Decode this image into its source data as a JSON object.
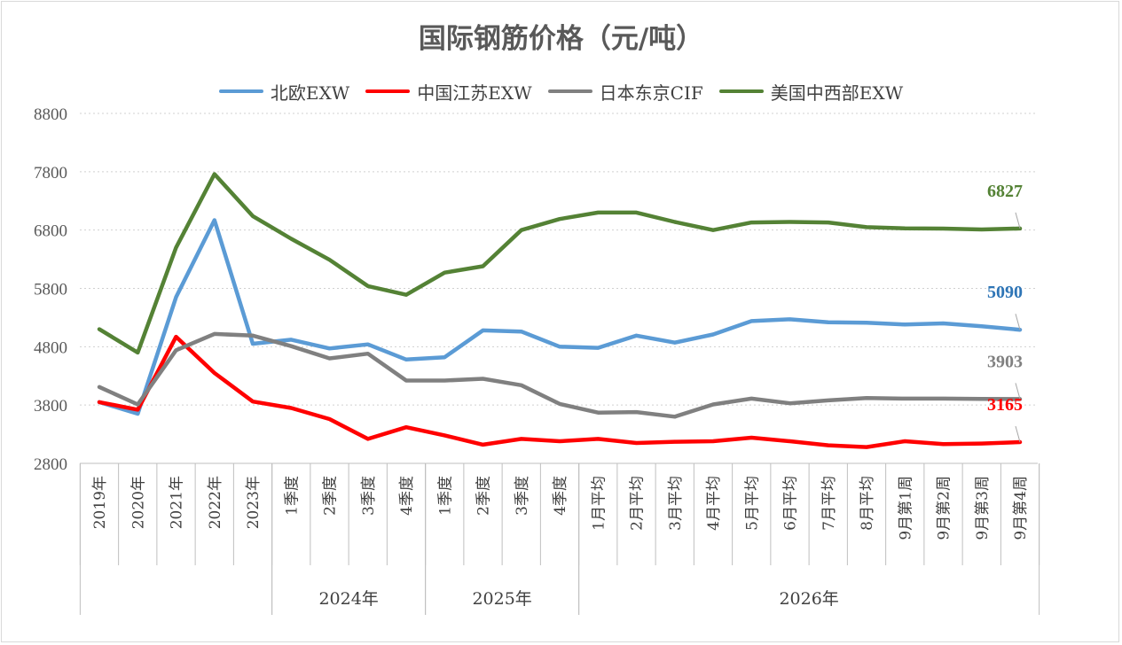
{
  "chart_data": {
    "type": "line",
    "title": "国际钢筋价格（元/吨）",
    "ylim": [
      2800,
      8800
    ],
    "yticks": [
      2800,
      3800,
      4800,
      5800,
      6800,
      7800,
      8800
    ],
    "grid": "horizontal-dotted",
    "legend_position": "top",
    "categories": [
      "2019年",
      "2020年",
      "2021年",
      "2022年",
      "2023年",
      "1季度",
      "2季度",
      "3季度",
      "4季度",
      "1季度",
      "2季度",
      "3季度",
      "4季度",
      "1月平均",
      "2月平均",
      "3月平均",
      "4月平均",
      "5月平均",
      "6月平均",
      "7月平均",
      "8月平均",
      "9月第1周",
      "9月第2周",
      "9月第3周",
      "9月第4周"
    ],
    "category_groups": [
      {
        "label": "",
        "start": 0,
        "end": 4
      },
      {
        "label": "2024年",
        "start": 5,
        "end": 8
      },
      {
        "label": "2025年",
        "start": 9,
        "end": 12
      },
      {
        "label": "2026年",
        "start": 13,
        "end": 24
      }
    ],
    "series": [
      {
        "name": "北欧EXW",
        "color": "#5b9bd5",
        "end_label": "5090",
        "end_label_color": "#2e75b6",
        "values": [
          3850,
          3650,
          5650,
          6970,
          4850,
          4920,
          4770,
          4840,
          4580,
          4620,
          5080,
          5060,
          4800,
          4780,
          4990,
          4870,
          5010,
          5240,
          5270,
          5220,
          5210,
          5180,
          5200,
          5150,
          5090
        ]
      },
      {
        "name": "中国江苏EXW",
        "color": "#ff0000",
        "end_label": "3165",
        "end_label_color": "#ff0000",
        "values": [
          3850,
          3720,
          4970,
          4350,
          3860,
          3750,
          3560,
          3220,
          3420,
          3280,
          3120,
          3220,
          3180,
          3220,
          3150,
          3170,
          3180,
          3240,
          3180,
          3110,
          3080,
          3180,
          3130,
          3140,
          3165
        ]
      },
      {
        "name": "日本东京CIF",
        "color": "#808080",
        "end_label": "3903",
        "end_label_color": "#808080",
        "values": [
          4110,
          3810,
          4740,
          5020,
          4990,
          4810,
          4600,
          4680,
          4220,
          4220,
          4250,
          4140,
          3820,
          3670,
          3680,
          3600,
          3810,
          3910,
          3830,
          3880,
          3920,
          3910,
          3910,
          3905,
          3903
        ]
      },
      {
        "name": "美国中西部EXW",
        "color": "#548235",
        "end_label": "6827",
        "end_label_color": "#548235",
        "values": [
          5100,
          4700,
          6500,
          7760,
          7040,
          6650,
          6290,
          5840,
          5690,
          6070,
          6180,
          6800,
          6990,
          7100,
          7100,
          6940,
          6800,
          6930,
          6940,
          6930,
          6850,
          6830,
          6825,
          6810,
          6827
        ]
      }
    ]
  }
}
